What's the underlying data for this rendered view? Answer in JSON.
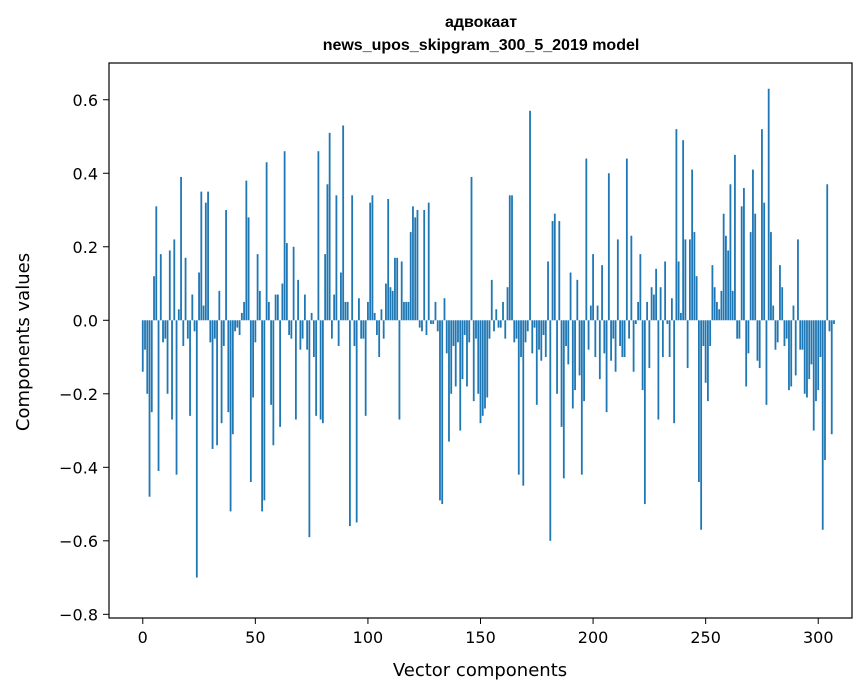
{
  "chart_data": {
    "type": "bar",
    "title_line1": "адвокаат",
    "title_line2": "news_upos_skipgram_300_5_2019 model",
    "xlabel": "Vector components",
    "ylabel": "Components values",
    "xlim": [
      -15,
      315
    ],
    "ylim": [
      -0.81,
      0.7
    ],
    "x_ticks": [
      0,
      50,
      100,
      150,
      200,
      250,
      300
    ],
    "x_tick_labels": [
      "0",
      "50",
      "100",
      "150",
      "200",
      "250",
      "300"
    ],
    "y_ticks": [
      -0.8,
      -0.6,
      -0.4,
      -0.2,
      0.0,
      0.2,
      0.4,
      0.6
    ],
    "y_tick_labels": [
      "−0.8",
      "−0.6",
      "−0.4",
      "−0.2",
      "0.0",
      "0.2",
      "0.4",
      "0.6"
    ],
    "bar_color": "#1f77b4",
    "values": [
      -0.14,
      -0.08,
      -0.2,
      -0.48,
      -0.25,
      0.12,
      0.31,
      -0.41,
      0.18,
      -0.06,
      -0.05,
      -0.2,
      0.19,
      -0.27,
      0.22,
      -0.42,
      0.03,
      0.39,
      -0.07,
      0.17,
      -0.05,
      -0.26,
      0.07,
      -0.03,
      -0.7,
      0.13,
      0.35,
      0.04,
      0.32,
      0.35,
      -0.06,
      -0.35,
      -0.05,
      -0.34,
      0.08,
      -0.28,
      -0.07,
      0.3,
      -0.25,
      -0.52,
      -0.31,
      -0.03,
      -0.02,
      -0.04,
      0.02,
      0.05,
      0.38,
      0.28,
      -0.44,
      -0.21,
      -0.06,
      0.18,
      0.08,
      -0.52,
      -0.49,
      0.43,
      0.05,
      -0.23,
      -0.34,
      0.07,
      0.07,
      -0.29,
      0.1,
      0.46,
      0.21,
      -0.04,
      -0.05,
      0.2,
      -0.27,
      0.11,
      -0.08,
      -0.05,
      0.07,
      -0.08,
      -0.59,
      0.02,
      -0.1,
      -0.26,
      0.46,
      -0.27,
      -0.28,
      0.18,
      0.37,
      0.51,
      -0.05,
      0.07,
      0.34,
      -0.07,
      0.13,
      0.53,
      0.05,
      0.05,
      -0.56,
      0.34,
      -0.07,
      -0.55,
      0.06,
      -0.05,
      -0.05,
      -0.26,
      0.05,
      0.32,
      0.34,
      0.02,
      -0.04,
      -0.1,
      0.03,
      -0.05,
      0.1,
      0.33,
      0.09,
      0.08,
      0.17,
      0.17,
      -0.27,
      0.16,
      0.05,
      0.05,
      0.05,
      0.24,
      0.31,
      0.28,
      0.3,
      -0.02,
      -0.03,
      0.3,
      -0.04,
      0.32,
      -0.01,
      -0.01,
      0.05,
      -0.03,
      -0.49,
      -0.5,
      0.06,
      -0.09,
      -0.33,
      -0.2,
      -0.07,
      -0.18,
      -0.06,
      -0.3,
      -0.16,
      -0.04,
      -0.18,
      -0.06,
      0.39,
      -0.22,
      -0.05,
      -0.2,
      -0.28,
      -0.26,
      -0.24,
      -0.21,
      -0.05,
      0.11,
      -0.03,
      0.03,
      -0.02,
      -0.02,
      0.05,
      -0.05,
      0.09,
      0.34,
      0.34,
      -0.06,
      -0.05,
      -0.42,
      -0.1,
      -0.45,
      -0.06,
      -0.03,
      0.57,
      -0.09,
      -0.02,
      -0.23,
      -0.08,
      -0.11,
      -0.04,
      -0.1,
      0.16,
      -0.6,
      0.27,
      0.29,
      -0.2,
      0.27,
      -0.29,
      -0.43,
      -0.07,
      -0.12,
      0.13,
      -0.24,
      -0.19,
      0.11,
      -0.15,
      -0.42,
      -0.22,
      0.44,
      -0.08,
      0.04,
      0.18,
      -0.1,
      0.04,
      -0.16,
      0.15,
      -0.09,
      -0.25,
      0.4,
      -0.11,
      -0.05,
      -0.14,
      0.22,
      -0.07,
      -0.1,
      -0.1,
      0.44,
      -0.05,
      0.23,
      -0.14,
      -0.01,
      0.05,
      0.18,
      -0.19,
      -0.5,
      0.05,
      -0.13,
      0.09,
      0.07,
      0.14,
      -0.27,
      0.09,
      -0.1,
      0.16,
      -0.01,
      -0.1,
      0.06,
      -0.28,
      0.52,
      0.16,
      0.02,
      0.49,
      0.22,
      -0.13,
      0.22,
      0.41,
      0.24,
      0.12,
      -0.44,
      -0.57,
      -0.07,
      -0.17,
      -0.22,
      -0.07,
      0.15,
      0.09,
      0.05,
      0.03,
      0.08,
      0.29,
      0.23,
      0.19,
      0.37,
      0.08,
      0.45,
      -0.05,
      -0.05,
      0.31,
      0.36,
      -0.18,
      -0.09,
      0.24,
      0.41,
      0.29,
      -0.11,
      -0.13,
      0.52,
      0.32,
      -0.23,
      0.63,
      0.24,
      0.04,
      -0.08,
      -0.06,
      0.15,
      0.09,
      -0.07,
      -0.05,
      -0.19,
      -0.18,
      0.04,
      -0.15,
      0.22,
      -0.08,
      -0.08,
      -0.2,
      -0.21,
      -0.16,
      -0.12,
      -0.3,
      -0.22,
      -0.19,
      -0.1,
      -0.57,
      -0.38,
      0.37,
      -0.03,
      -0.31,
      -0.01
    ]
  }
}
